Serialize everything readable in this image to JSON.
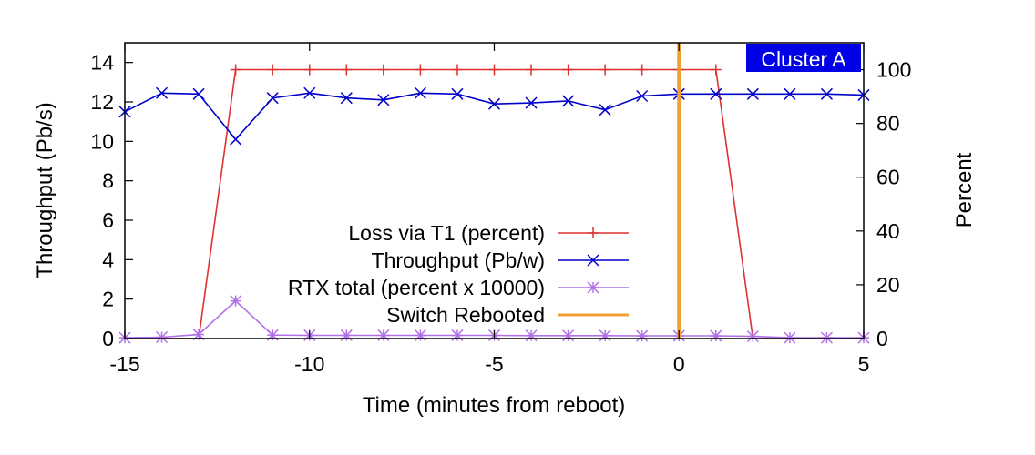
{
  "chart_data": {
    "type": "line",
    "title": "",
    "badge": {
      "text": "Cluster A",
      "bg_color": "#0000e6",
      "text_color": "#ffffff"
    },
    "xlabel": "Time (minutes from reboot)",
    "ylabel": "Throughput (Pb/s)",
    "y2label": "Percent",
    "xlim": [
      -15,
      5
    ],
    "ylim": [
      0,
      15
    ],
    "y2lim": [
      0,
      110
    ],
    "xticks": [
      -15,
      -10,
      -5,
      0,
      5
    ],
    "yticks": [
      0,
      2,
      4,
      6,
      8,
      10,
      12,
      14
    ],
    "y2ticks": [
      0,
      20,
      40,
      60,
      80,
      100
    ],
    "grid": false,
    "legend_position": "center-left",
    "series": [
      {
        "name": "Loss via T1 (percent)",
        "axis": "y2",
        "color": "#e03030",
        "marker": "plus",
        "x": [
          -15,
          -14,
          -13,
          -12,
          -11,
          -10,
          -9,
          -8,
          -7,
          -6,
          -5,
          -4,
          -3,
          -2,
          -1,
          0,
          1,
          2,
          3,
          4,
          5
        ],
        "y": [
          0,
          0,
          0,
          100,
          100,
          100,
          100,
          100,
          100,
          100,
          100,
          100,
          100,
          100,
          100,
          100,
          100,
          0,
          0,
          0,
          0
        ],
        "marker_x": [
          -12,
          -11,
          -10,
          -9,
          -8,
          -7,
          -6,
          -5,
          -4,
          -3,
          -2,
          -1,
          0,
          1
        ]
      },
      {
        "name": "Throughput (Pb/w)",
        "axis": "y",
        "color": "#0000cc",
        "marker": "cross",
        "x": [
          -15,
          -14,
          -13,
          -12,
          -11,
          -10,
          -9,
          -8,
          -7,
          -6,
          -5,
          -4,
          -3,
          -2,
          -1,
          0,
          1,
          2,
          3,
          4,
          5
        ],
        "y": [
          11.5,
          12.45,
          12.4,
          10.1,
          12.2,
          12.45,
          12.2,
          12.1,
          12.45,
          12.4,
          11.9,
          11.95,
          12.05,
          11.6,
          12.3,
          12.4,
          12.4,
          12.4,
          12.4,
          12.4,
          12.35
        ]
      },
      {
        "name": "RTX total (percent x 10000)",
        "axis": "y2",
        "color": "#b070e8",
        "marker": "star",
        "x": [
          -15,
          -14,
          -13,
          -12,
          -11,
          -10,
          -9,
          -8,
          -7,
          -6,
          -5,
          -4,
          -3,
          -2,
          -1,
          0,
          1,
          2,
          3,
          4,
          5
        ],
        "y": [
          0.3,
          0.5,
          1.5,
          14,
          1.3,
          1.2,
          1.2,
          1.2,
          1.2,
          1.2,
          1.2,
          1.1,
          1.1,
          1.1,
          1.0,
          1.0,
          1.0,
          0.8,
          0.3,
          0.3,
          0.3
        ]
      },
      {
        "name": "Switch Rebooted",
        "axis": "y",
        "color": "#f0a030",
        "marker": "none",
        "type": "vline",
        "x": 0
      }
    ]
  }
}
